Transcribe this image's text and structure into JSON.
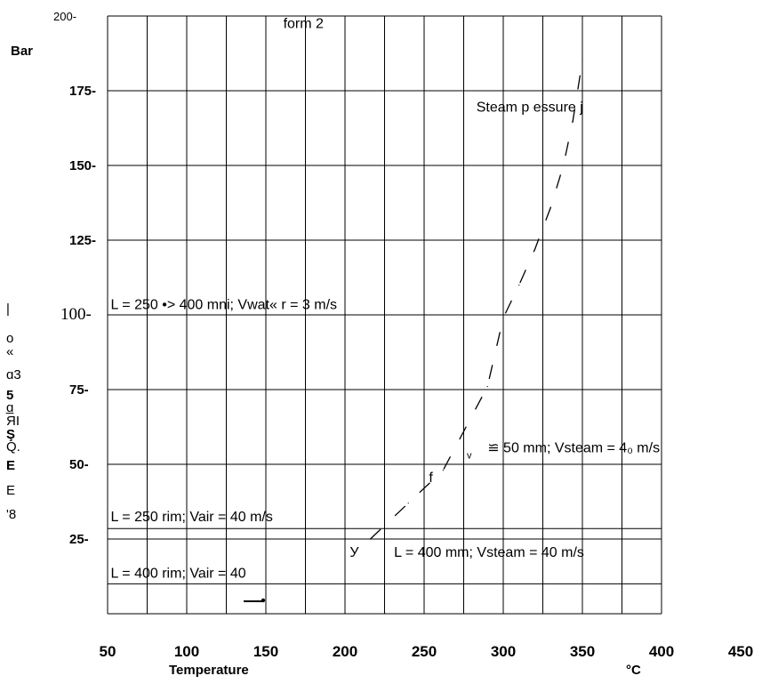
{
  "chart_data": {
    "type": "line",
    "title": "",
    "xlabel": "Temperature",
    "x_unit": "°C",
    "ylabel": "Bar",
    "xlim": [
      50,
      400
    ],
    "ylim": [
      0,
      200
    ],
    "x_ticks": [
      "50",
      "100",
      "150",
      "200",
      "250",
      "300",
      "350",
      "400",
      "450"
    ],
    "y_ticks": [
      {
        "value": 200,
        "label": "200-"
      },
      {
        "value": 175,
        "label": "175-"
      },
      {
        "value": 150,
        "label": "150-"
      },
      {
        "value": 125,
        "label": "125-"
      },
      {
        "value": 100,
        "label": "100-"
      },
      {
        "value": 75,
        "label": "75-"
      },
      {
        "value": 50,
        "label": "50-"
      },
      {
        "value": 25,
        "label": "25-"
      }
    ],
    "grid": true,
    "series": [
      {
        "name": "Steam p essure j",
        "x": [
          216,
          240,
          262,
          290,
          300,
          310,
          320,
          330,
          338,
          344,
          350
        ],
        "y": [
          25,
          37,
          48,
          76,
          99,
          110,
          122,
          136,
          150,
          165,
          185
        ],
        "style": "dashed"
      }
    ],
    "limit_lines": [
      {
        "label": "L = 400 rim; Vair = 40",
        "y": 10,
        "x": [
          50,
          400
        ]
      },
      {
        "label": "L = 250 rim;   Vair = 40 m/s",
        "y": 28.5,
        "x": [
          50,
          400
        ]
      }
    ],
    "annotations": [
      {
        "text": "form 2",
        "x": 161,
        "y": 196
      },
      {
        "text": "Steam p essure j",
        "x": 283,
        "y": 168
      },
      {
        "text": "L = 250 •> 400 mni;   Vwat« r = 3 m/s",
        "x": 52,
        "y": 102
      },
      {
        "text": "≌ 50 mm; Vsteam = 4₀ m/s",
        "x": 290,
        "y": 54
      },
      {
        "text": "L =  400 mm; Vsteam = 40 m/s",
        "x": 231,
        "y": 19
      },
      {
        "text": "L = 250 rim;   Vair = 40 m/s",
        "x": 52,
        "y": 31
      },
      {
        "text": "L = 400 rim; Vair = 40",
        "x": 52,
        "y": 12
      },
      {
        "text": "У",
        "x": 203,
        "y": 19
      },
      {
        "text": "f",
        "x": 253,
        "y": 44
      },
      {
        "text": "v",
        "x": 277,
        "y": 52
      }
    ]
  },
  "side_text": [
    "|",
    "o",
    "«",
    "ɑ3",
    "5",
    "ɑ̲",
    "ЯI",
    "Ş",
    "Q.",
    "E",
    "E",
    "'8"
  ],
  "colors": {
    "line": "#000000",
    "grid": "#000000",
    "background": "#ffffff"
  }
}
